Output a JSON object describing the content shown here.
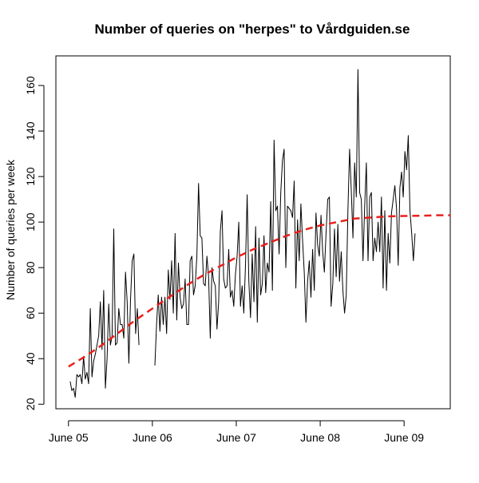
{
  "chart_data": {
    "type": "line",
    "title": "Number of queries on \"herpes\" to Vårdguiden.se",
    "xlabel": "",
    "ylabel": "Number of queries per week",
    "x_ticks": [
      "June 05",
      "June 06",
      "June 07",
      "June 08",
      "June 09"
    ],
    "y_ticks": [
      20,
      40,
      60,
      80,
      100,
      120,
      140,
      160
    ],
    "xlim": [
      -1.5,
      45.5
    ],
    "ylim": [
      18,
      173
    ],
    "grid": false,
    "legend": "none",
    "series": [
      {
        "style": "solid",
        "color": "#000000",
        "segments": [
          [
            [
              0.2,
              30
            ],
            [
              0.4,
              26
            ],
            [
              0.6,
              27
            ],
            [
              0.8,
              23
            ],
            [
              1.0,
              33
            ],
            [
              1.2,
              32
            ],
            [
              1.4,
              33
            ],
            [
              1.6,
              29
            ],
            [
              1.8,
              41
            ],
            [
              2.0,
              31
            ],
            [
              2.2,
              34
            ],
            [
              2.4,
              29
            ],
            [
              2.6,
              62
            ],
            [
              2.8,
              32
            ],
            [
              3.0,
              39
            ],
            [
              3.2,
              42
            ],
            [
              3.4,
              46
            ],
            [
              3.6,
              50
            ],
            [
              3.8,
              65
            ],
            [
              4.0,
              44
            ],
            [
              4.2,
              70
            ],
            [
              4.4,
              27
            ],
            [
              4.6,
              40
            ],
            [
              4.8,
              64
            ],
            [
              5.0,
              46
            ],
            [
              5.2,
              50
            ],
            [
              5.4,
              97
            ],
            [
              5.6,
              46
            ],
            [
              5.8,
              47
            ],
            [
              6.0,
              62
            ],
            [
              6.2,
              55
            ],
            [
              6.4,
              55
            ],
            [
              6.6,
              49
            ],
            [
              6.8,
              78
            ],
            [
              7.0,
              65
            ],
            [
              7.2,
              38
            ],
            [
              7.4,
              66
            ],
            [
              7.6,
              83
            ],
            [
              7.8,
              86
            ],
            [
              8.0,
              51
            ],
            [
              8.2,
              62
            ],
            [
              8.4,
              46
            ]
          ],
          [
            [
              10.3,
              37
            ],
            [
              10.5,
              55
            ],
            [
              10.7,
              68
            ],
            [
              10.9,
              52
            ],
            [
              11.1,
              67
            ],
            [
              11.3,
              55
            ],
            [
              11.5,
              67
            ],
            [
              11.7,
              51
            ],
            [
              11.9,
              79
            ],
            [
              12.1,
              66
            ],
            [
              12.3,
              83
            ],
            [
              12.5,
              60
            ],
            [
              12.7,
              95
            ],
            [
              12.9,
              57
            ],
            [
              13.1,
              82
            ],
            [
              13.3,
              67
            ],
            [
              13.5,
              62
            ],
            [
              13.7,
              64
            ],
            [
              13.9,
              75
            ],
            [
              14.1,
              55
            ],
            [
              14.3,
              55
            ],
            [
              14.5,
              83
            ],
            [
              14.7,
              85
            ],
            [
              14.9,
              68
            ],
            [
              15.1,
              72
            ],
            [
              15.3,
              85
            ],
            [
              15.5,
              117
            ],
            [
              15.7,
              94
            ],
            [
              15.9,
              93
            ],
            [
              16.1,
              73
            ],
            [
              16.3,
              72
            ],
            [
              16.5,
              85
            ],
            [
              16.7,
              76
            ],
            [
              16.9,
              49
            ],
            [
              17.1,
              80
            ],
            [
              17.3,
              74
            ],
            [
              17.5,
              72
            ],
            [
              17.7,
              53
            ],
            [
              17.9,
              65
            ],
            [
              18.1,
              96
            ],
            [
              18.3,
              105
            ],
            [
              18.5,
              75
            ],
            [
              18.7,
              71
            ],
            [
              18.9,
              72
            ],
            [
              19.1,
              88
            ],
            [
              19.3,
              67
            ],
            [
              19.5,
              70
            ],
            [
              19.7,
              63
            ],
            [
              19.9,
              77
            ],
            [
              20.1,
              85
            ],
            [
              20.3,
              100
            ],
            [
              20.5,
              63
            ],
            [
              20.7,
              72
            ],
            [
              20.9,
              60
            ],
            [
              21.1,
              81
            ],
            [
              21.3,
              112
            ],
            [
              21.5,
              74
            ],
            [
              21.7,
              58
            ],
            [
              21.9,
              86
            ],
            [
              22.1,
              65
            ],
            [
              22.3,
              98
            ],
            [
              22.5,
              56
            ],
            [
              22.7,
              93
            ],
            [
              22.9,
              68
            ],
            [
              23.1,
              73
            ],
            [
              23.3,
              94
            ],
            [
              23.5,
              69
            ],
            [
              23.7,
              82
            ],
            [
              23.9,
              78
            ],
            [
              24.1,
              109
            ],
            [
              24.3,
              70
            ],
            [
              24.5,
              136
            ],
            [
              24.7,
              105
            ],
            [
              24.9,
              107
            ],
            [
              25.1,
              86
            ],
            [
              25.3,
              113
            ],
            [
              25.5,
              127
            ],
            [
              25.7,
              132
            ],
            [
              25.9,
              80
            ],
            [
              26.1,
              107
            ],
            [
              26.3,
              106
            ],
            [
              26.5,
              105
            ],
            [
              26.7,
              102
            ],
            [
              26.9,
              118
            ],
            [
              27.1,
              71
            ],
            [
              27.3,
              101
            ],
            [
              27.5,
              83
            ],
            [
              27.7,
              108
            ],
            [
              27.9,
              92
            ],
            [
              28.1,
              78
            ],
            [
              28.3,
              56
            ],
            [
              28.5,
              74
            ],
            [
              28.7,
              83
            ],
            [
              28.9,
              67
            ],
            [
              29.1,
              88
            ],
            [
              29.3,
              70
            ],
            [
              29.5,
              104
            ],
            [
              29.7,
              90
            ],
            [
              29.9,
              85
            ],
            [
              30.1,
              103
            ],
            [
              30.3,
              87
            ],
            [
              30.5,
              78
            ],
            [
              30.7,
              95
            ],
            [
              30.9,
              110
            ],
            [
              31.1,
              111
            ],
            [
              31.3,
              63
            ],
            [
              31.5,
              73
            ],
            [
              31.7,
              97
            ],
            [
              31.9,
              76
            ],
            [
              32.1,
              99
            ],
            [
              32.3,
              74
            ],
            [
              32.5,
              87
            ],
            [
              32.7,
              70
            ],
            [
              32.9,
              60
            ],
            [
              33.1,
              68
            ],
            [
              33.3,
              105
            ],
            [
              33.5,
              132
            ],
            [
              33.7,
              114
            ],
            [
              33.9,
              93
            ],
            [
              34.1,
              126
            ],
            [
              34.3,
              111
            ],
            [
              34.5,
              167
            ],
            [
              34.7,
              113
            ],
            [
              34.9,
              110
            ],
            [
              35.1,
              83
            ],
            [
              35.3,
              107
            ],
            [
              35.5,
              126
            ],
            [
              35.7,
              83
            ],
            [
              35.9,
              111
            ],
            [
              36.1,
              113
            ],
            [
              36.3,
              83
            ],
            [
              36.5,
              93
            ],
            [
              36.7,
              87
            ],
            [
              36.9,
              100
            ],
            [
              37.1,
              87
            ],
            [
              37.3,
              111
            ],
            [
              37.5,
              71
            ],
            [
              37.7,
              105
            ],
            [
              37.9,
              70
            ],
            [
              38.1,
              95
            ],
            [
              38.3,
              82
            ],
            [
              38.5,
              104
            ],
            [
              38.7,
              110
            ],
            [
              38.9,
              116
            ],
            [
              39.1,
              106
            ],
            [
              39.3,
              81
            ],
            [
              39.5,
              115
            ],
            [
              39.7,
              122
            ],
            [
              39.9,
              111
            ],
            [
              40.1,
              131
            ],
            [
              40.3,
              123
            ],
            [
              40.5,
              138
            ],
            [
              40.7,
              105
            ],
            [
              40.9,
              95
            ],
            [
              41.1,
              83
            ],
            [
              41.3,
              95
            ]
          ]
        ]
      },
      {
        "style": "dashed",
        "color": "#e8201c",
        "points": [
          [
            0,
            36.5
          ],
          [
            2,
            41
          ],
          [
            4,
            46
          ],
          [
            6,
            51.5
          ],
          [
            8,
            57
          ],
          [
            10,
            62
          ],
          [
            12,
            67
          ],
          [
            14,
            72
          ],
          [
            16,
            76.5
          ],
          [
            18,
            80.5
          ],
          [
            20,
            84.5
          ],
          [
            22,
            88
          ],
          [
            24,
            91
          ],
          [
            26,
            94
          ],
          [
            28,
            96.5
          ],
          [
            30,
            98.5
          ],
          [
            32,
            100
          ],
          [
            34,
            101.5
          ],
          [
            36,
            102
          ],
          [
            38,
            102.5
          ],
          [
            40,
            102.7
          ],
          [
            42,
            102.8
          ],
          [
            44,
            103
          ],
          [
            45.5,
            103
          ]
        ]
      }
    ],
    "tick_positions": [
      0,
      10,
      20,
      30,
      40
    ]
  }
}
